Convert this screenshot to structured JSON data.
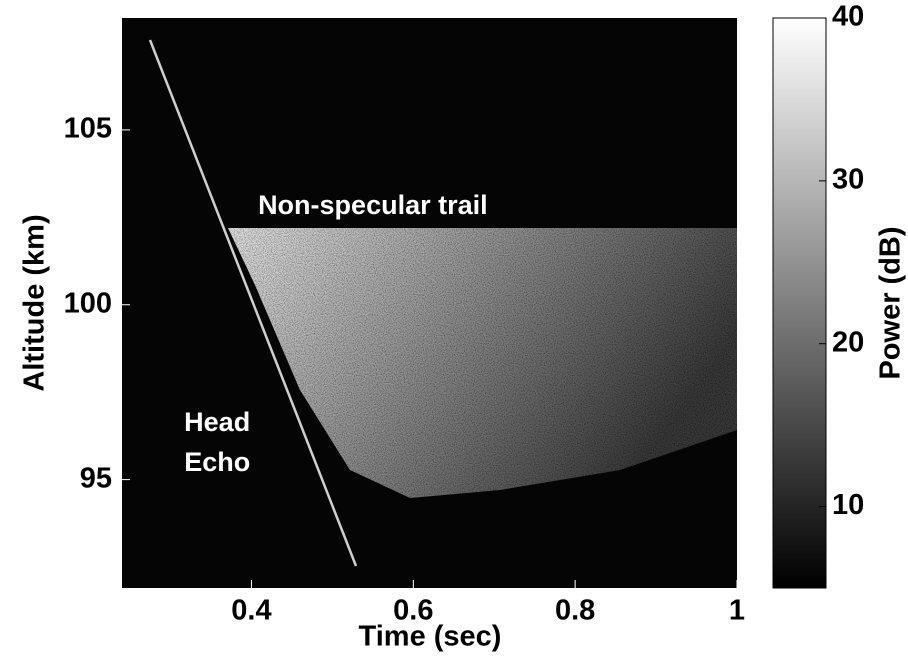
{
  "chart_data": {
    "type": "heatmap",
    "xlabel": "Time (sec)",
    "ylabel": "Altitude (km)",
    "xlim": [
      0.24,
      1
    ],
    "xticks": [
      0.4,
      0.6,
      0.8,
      1
    ],
    "ylim": [
      91.9,
      108.2
    ],
    "yticks": [
      95,
      100,
      105
    ],
    "colorbar": {
      "label": "Power (dB)",
      "lim": [
        5,
        40
      ],
      "ticks": [
        10,
        20,
        30,
        40
      ],
      "colormap": "gray"
    },
    "annotations": [
      {
        "text": "Non-specular trail",
        "x": 0.55,
        "y": 102.8
      },
      {
        "lines": [
          "Head",
          "Echo"
        ],
        "x": 0.37,
        "y": 96.6
      }
    ]
  }
}
